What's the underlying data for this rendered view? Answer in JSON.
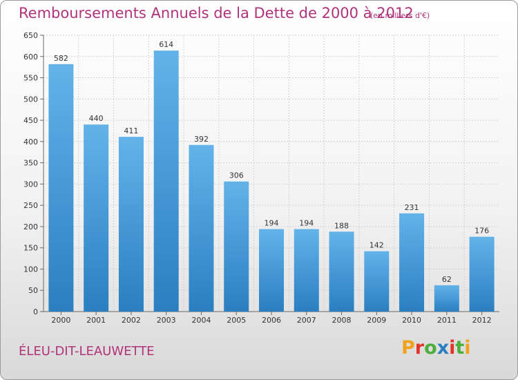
{
  "header": {
    "title": "Remboursements Annuels de la Dette de 2000 à 2012",
    "unit": "(en milliers d'€)"
  },
  "footer": {
    "commune": "ÉLEU-DIT-LEAUWETTE",
    "logo_text": "Proxiti"
  },
  "colors": {
    "accent": "#b03278",
    "bar_top": "#63b3ea",
    "bar_bottom": "#2a7fc0",
    "logo": [
      "#f0a21a",
      "#e2342a",
      "#4cae3c",
      "#2a7fc0",
      "#e2342a",
      "#4cae3c",
      "#f0a21a"
    ]
  },
  "chart_data": {
    "type": "bar",
    "categories": [
      "2000",
      "2001",
      "2002",
      "2003",
      "2004",
      "2005",
      "2006",
      "2007",
      "2008",
      "2009",
      "2010",
      "2011",
      "2012"
    ],
    "values": [
      582,
      440,
      411,
      614,
      392,
      306,
      194,
      194,
      188,
      142,
      231,
      62,
      176
    ],
    "title": "Remboursements Annuels de la Dette de 2000 à 2012",
    "xlabel": "",
    "ylabel": "",
    "ylim": [
      0,
      650
    ],
    "yticks": [
      0,
      50,
      100,
      150,
      200,
      250,
      300,
      350,
      400,
      450,
      500,
      550,
      600,
      650
    ],
    "grid": true,
    "data_labels": true
  }
}
